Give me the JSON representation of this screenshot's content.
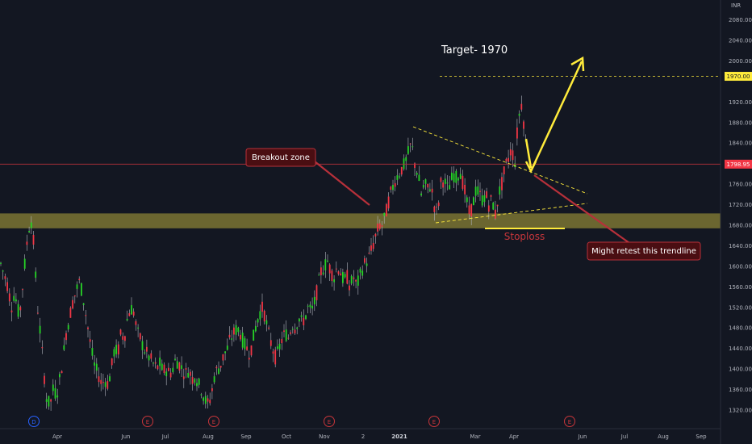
{
  "chart_data": {
    "type": "candlestick",
    "currency": "INR",
    "ylim": [
      1300,
      2080
    ],
    "y_ticks": [
      1320,
      1360,
      1400,
      1440,
      1480,
      1520,
      1560,
      1600,
      1640,
      1680,
      1720,
      1760,
      1800,
      1840,
      1880,
      1920,
      1960,
      2000,
      2040,
      2080
    ],
    "x_ticks": [
      "Apr",
      "Jun",
      "Jul",
      "Aug",
      "Sep",
      "Oct",
      "Nov",
      "2",
      "2021",
      "Mar",
      "Apr",
      "Jun",
      "Jul",
      "Aug",
      "Sep"
    ],
    "x_ticks_bold": [
      "2021"
    ],
    "last_price": "1798.95",
    "target_price": "1970.00",
    "event_markers": [
      "D",
      "E",
      "E",
      "E",
      "E",
      "E"
    ],
    "colors": {
      "up": "#26d426",
      "down": "#f23645",
      "wick": "#b2b5be",
      "target": "#ffeb3b",
      "zone": "#8a8236",
      "annotation_bg": "#4a0e12",
      "annotation_border": "#b7303a",
      "stoploss": "#ffeb3b",
      "stoploss_text": "#c8363b"
    },
    "annotations": {
      "target_label": "Target- 1970",
      "breakout_label": "Breakout zone",
      "retest_label": "Might retest this trendline",
      "stoploss_label": "Stoploss"
    },
    "support_zone": [
      1674,
      1703
    ],
    "price_path": [
      [
        0,
        1610
      ],
      [
        6,
        1580
      ],
      [
        10,
        1560
      ],
      [
        14,
        1520
      ],
      [
        18,
        1550
      ],
      [
        24,
        1500
      ],
      [
        28,
        1560
      ],
      [
        33,
        1640
      ],
      [
        38,
        1700
      ],
      [
        42,
        1640
      ],
      [
        46,
        1530
      ],
      [
        50,
        1470
      ],
      [
        54,
        1400
      ],
      [
        58,
        1340
      ],
      [
        62,
        1330
      ],
      [
        66,
        1360
      ],
      [
        70,
        1350
      ],
      [
        74,
        1380
      ],
      [
        78,
        1420
      ],
      [
        82,
        1470
      ],
      [
        86,
        1500
      ],
      [
        90,
        1530
      ],
      [
        94,
        1550
      ],
      [
        98,
        1570
      ],
      [
        102,
        1550
      ],
      [
        106,
        1510
      ],
      [
        110,
        1470
      ],
      [
        114,
        1430
      ],
      [
        118,
        1400
      ],
      [
        122,
        1390
      ],
      [
        126,
        1370
      ],
      [
        130,
        1380
      ],
      [
        134,
        1370
      ],
      [
        138,
        1400
      ],
      [
        142,
        1440
      ],
      [
        146,
        1430
      ],
      [
        150,
        1470
      ],
      [
        154,
        1460
      ],
      [
        158,
        1500
      ],
      [
        162,
        1520
      ],
      [
        166,
        1510
      ],
      [
        170,
        1470
      ],
      [
        174,
        1460
      ],
      [
        178,
        1440
      ],
      [
        182,
        1430
      ],
      [
        186,
        1420
      ],
      [
        190,
        1410
      ],
      [
        194,
        1400
      ],
      [
        198,
        1410
      ],
      [
        202,
        1395
      ],
      [
        206,
        1400
      ],
      [
        210,
        1390
      ],
      [
        214,
        1400
      ],
      [
        218,
        1420
      ],
      [
        222,
        1410
      ],
      [
        226,
        1400
      ],
      [
        230,
        1390
      ],
      [
        234,
        1400
      ],
      [
        238,
        1380
      ],
      [
        242,
        1390
      ],
      [
        246,
        1370
      ],
      [
        250,
        1360
      ],
      [
        254,
        1340
      ],
      [
        258,
        1330
      ],
      [
        262,
        1350
      ],
      [
        266,
        1390
      ],
      [
        270,
        1400
      ],
      [
        274,
        1410
      ],
      [
        278,
        1430
      ],
      [
        282,
        1440
      ],
      [
        286,
        1460
      ],
      [
        290,
        1470
      ],
      [
        294,
        1480
      ],
      [
        298,
        1470
      ],
      [
        302,
        1450
      ],
      [
        306,
        1440
      ],
      [
        310,
        1430
      ],
      [
        314,
        1460
      ],
      [
        318,
        1490
      ],
      [
        322,
        1510
      ],
      [
        326,
        1520
      ],
      [
        330,
        1490
      ],
      [
        334,
        1460
      ],
      [
        338,
        1440
      ],
      [
        342,
        1420
      ],
      [
        346,
        1440
      ],
      [
        350,
        1460
      ],
      [
        354,
        1470
      ],
      [
        358,
        1460
      ],
      [
        362,
        1490
      ],
      [
        366,
        1480
      ],
      [
        370,
        1500
      ],
      [
        374,
        1490
      ],
      [
        378,
        1500
      ],
      [
        382,
        1520
      ],
      [
        386,
        1510
      ],
      [
        390,
        1530
      ],
      [
        394,
        1560
      ],
      [
        398,
        1590
      ],
      [
        402,
        1600
      ],
      [
        406,
        1610
      ],
      [
        410,
        1590
      ],
      [
        414,
        1580
      ],
      [
        418,
        1600
      ],
      [
        422,
        1590
      ],
      [
        426,
        1570
      ],
      [
        430,
        1580
      ],
      [
        434,
        1560
      ],
      [
        438,
        1580
      ],
      [
        442,
        1560
      ],
      [
        446,
        1580
      ],
      [
        450,
        1600
      ],
      [
        454,
        1610
      ],
      [
        458,
        1620
      ],
      [
        462,
        1640
      ],
      [
        466,
        1660
      ],
      [
        470,
        1680
      ],
      [
        474,
        1680
      ],
      [
        478,
        1700
      ],
      [
        482,
        1730
      ],
      [
        486,
        1750
      ],
      [
        490,
        1770
      ],
      [
        494,
        1780
      ],
      [
        498,
        1790
      ],
      [
        502,
        1800
      ],
      [
        506,
        1820
      ],
      [
        510,
        1840
      ],
      [
        514,
        1800
      ],
      [
        518,
        1780
      ],
      [
        522,
        1740
      ],
      [
        526,
        1760
      ],
      [
        530,
        1750
      ],
      [
        534,
        1760
      ],
      [
        538,
        1720
      ],
      [
        542,
        1700
      ],
      [
        546,
        1760
      ],
      [
        550,
        1770
      ],
      [
        554,
        1750
      ],
      [
        558,
        1760
      ],
      [
        562,
        1780
      ],
      [
        566,
        1770
      ],
      [
        570,
        1790
      ],
      [
        574,
        1760
      ],
      [
        578,
        1730
      ],
      [
        582,
        1700
      ],
      [
        586,
        1720
      ],
      [
        590,
        1750
      ],
      [
        594,
        1740
      ],
      [
        598,
        1730
      ],
      [
        602,
        1740
      ],
      [
        606,
        1720
      ],
      [
        610,
        1730
      ],
      [
        614,
        1700
      ],
      [
        618,
        1740
      ],
      [
        622,
        1760
      ],
      [
        626,
        1790
      ],
      [
        630,
        1810
      ],
      [
        634,
        1830
      ],
      [
        638,
        1800
      ],
      [
        642,
        1880
      ],
      [
        646,
        1920
      ],
      [
        650,
        1870
      ],
      [
        654,
        1800
      ]
    ]
  }
}
